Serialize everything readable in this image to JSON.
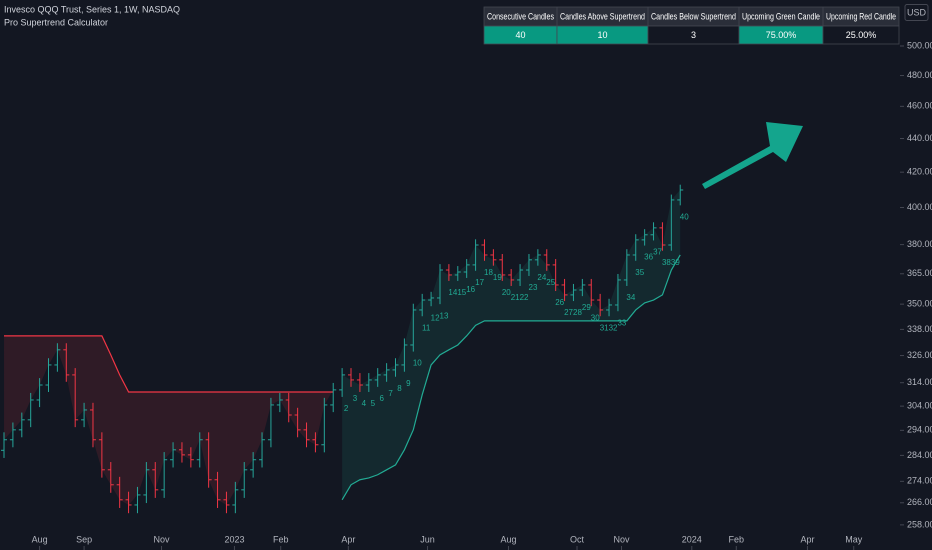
{
  "header": {
    "symbol": "Invesco QQQ Trust, Series 1, 1W, NASDAQ",
    "indicator": "Pro Supertrend Calculator",
    "currency": "USD"
  },
  "table": {
    "headers": [
      "Consecutive Candles",
      "Candles Above Supertrend",
      "Candles Below Supertrend",
      "Upcoming Green Candle",
      "Upcoming Red Candle"
    ],
    "values": [
      "40",
      "10",
      "3",
      "75.00%",
      "25.00%"
    ]
  },
  "chart_data": {
    "type": "ohlc",
    "log_scale": true,
    "up_color": "#26a69a",
    "down_color": "#f23645",
    "open": [
      286.0,
      290.2,
      294.2,
      298.3,
      306.6,
      313.0,
      321.8,
      328.6,
      317.4,
      298.3,
      302.4,
      290.2,
      278.4,
      272.7,
      267.1,
      265.2,
      268.9,
      278.4,
      270.8,
      282.3,
      286.2,
      284.2,
      282.3,
      290.2,
      274.6,
      267.1,
      265.2,
      270.8,
      278.4,
      282.3,
      290.2,
      304.5,
      306.6,
      300.3,
      294.2,
      290.2,
      288.2,
      304.5,
      310.9,
      317.4,
      315.2,
      313.0,
      315.2,
      317.4,
      319.6,
      321.8,
      330.8,
      347.2,
      352.0,
      353.0,
      366.9,
      364.4,
      365.9,
      369.5,
      379.8,
      374.6,
      372.1,
      364.4,
      361.9,
      366.9,
      372.1,
      374.6,
      369.5,
      359.4,
      354.5,
      356.9,
      359.4,
      352.0,
      347.2,
      349.6,
      361.9,
      374.6,
      382.5,
      385.2,
      388.9,
      379.8,
      404.2
    ],
    "high": [
      293.2,
      297.2,
      301.3,
      309.6,
      316.0,
      324.8,
      331.6,
      331.6,
      320.4,
      305.4,
      305.4,
      293.2,
      281.4,
      275.7,
      270.1,
      271.9,
      281.4,
      281.4,
      285.3,
      289.2,
      289.2,
      287.2,
      293.2,
      293.2,
      277.6,
      270.1,
      273.8,
      281.4,
      285.3,
      293.2,
      307.5,
      309.6,
      309.6,
      303.3,
      297.2,
      293.2,
      307.5,
      313.9,
      320.4,
      320.4,
      318.2,
      318.2,
      320.4,
      322.6,
      324.8,
      333.8,
      350.2,
      355.0,
      356.0,
      369.9,
      369.9,
      368.9,
      372.5,
      382.8,
      382.8,
      377.6,
      375.1,
      367.4,
      369.9,
      375.1,
      377.6,
      377.6,
      372.5,
      362.4,
      359.9,
      362.4,
      362.4,
      355.0,
      352.6,
      364.9,
      377.6,
      385.5,
      388.2,
      391.9,
      391.9,
      407.2,
      412.8
    ],
    "low": [
      283.0,
      287.2,
      291.2,
      295.3,
      303.6,
      310.0,
      318.8,
      314.4,
      295.3,
      295.3,
      287.2,
      275.4,
      269.7,
      264.1,
      262.2,
      262.2,
      265.9,
      267.8,
      267.8,
      279.3,
      281.2,
      279.3,
      279.3,
      271.6,
      264.1,
      262.2,
      262.2,
      267.8,
      275.4,
      279.3,
      287.2,
      301.5,
      297.3,
      291.2,
      287.2,
      285.2,
      285.2,
      301.5,
      307.9,
      312.2,
      310.0,
      310.0,
      312.2,
      314.4,
      316.6,
      318.8,
      327.8,
      344.2,
      349.0,
      350.0,
      361.4,
      361.4,
      362.9,
      366.5,
      371.6,
      369.1,
      361.4,
      358.9,
      358.9,
      363.9,
      369.1,
      366.5,
      356.4,
      351.5,
      351.5,
      353.9,
      349.0,
      344.2,
      344.2,
      346.6,
      358.9,
      371.6,
      379.5,
      382.2,
      376.8,
      376.8,
      401.2
    ],
    "close": [
      290.2,
      294.2,
      298.3,
      306.6,
      313.0,
      321.8,
      328.6,
      317.4,
      298.3,
      302.4,
      290.2,
      278.4,
      272.7,
      267.1,
      265.2,
      268.9,
      278.4,
      270.8,
      282.3,
      286.2,
      284.2,
      282.3,
      290.2,
      274.6,
      267.1,
      265.2,
      270.8,
      278.4,
      282.3,
      290.2,
      304.5,
      306.6,
      300.3,
      294.2,
      290.2,
      288.2,
      304.5,
      310.9,
      317.4,
      315.2,
      313.0,
      315.2,
      317.4,
      319.6,
      321.8,
      330.8,
      347.2,
      352.0,
      353.0,
      366.9,
      364.4,
      365.9,
      369.5,
      379.8,
      374.6,
      372.1,
      364.4,
      361.9,
      366.9,
      372.1,
      374.6,
      369.5,
      359.4,
      354.5,
      356.9,
      359.4,
      352.0,
      347.2,
      349.6,
      361.9,
      374.6,
      382.5,
      385.2,
      388.9,
      379.8,
      404.2,
      409.8
    ],
    "supertrend": [
      {
        "color": "#f23645",
        "fill": "rgba(242,54,69,0.13)",
        "values": [
          335,
          335,
          335,
          335,
          335,
          335,
          335,
          335,
          335,
          335,
          335,
          335,
          326.3,
          317.4,
          310,
          310,
          310,
          310,
          310,
          310,
          310,
          310,
          310,
          310,
          310,
          310,
          310,
          310,
          310,
          310,
          310,
          310,
          310,
          310,
          310,
          310,
          310,
          310,
          null,
          null,
          null,
          null,
          null,
          null,
          null,
          null,
          null,
          null,
          null,
          null,
          null,
          null,
          null,
          null,
          null,
          null,
          null,
          null,
          null,
          null,
          null,
          null,
          null,
          null,
          null,
          null,
          null,
          null,
          null,
          null,
          null,
          null,
          null,
          null,
          null,
          null,
          null
        ]
      },
      {
        "color": "#22ab94",
        "fill": "rgba(34,171,148,0.12)",
        "values": [
          null,
          null,
          null,
          null,
          null,
          null,
          null,
          null,
          null,
          null,
          null,
          null,
          null,
          null,
          null,
          null,
          null,
          null,
          null,
          null,
          null,
          null,
          null,
          null,
          null,
          null,
          null,
          null,
          null,
          null,
          null,
          null,
          null,
          null,
          null,
          null,
          null,
          null,
          267.1,
          272.7,
          274.6,
          275.3,
          276.5,
          278.4,
          280.3,
          286.2,
          294.2,
          308.8,
          321.8,
          326.3,
          328.6,
          330.8,
          335.0,
          339.9,
          342,
          342,
          342,
          342,
          342,
          342,
          342,
          342,
          342,
          342,
          342,
          342,
          342,
          342,
          342,
          342,
          342,
          347.2,
          350.6,
          352.0,
          354.5,
          366.9,
          374.6
        ]
      }
    ],
    "counts": [
      null,
      null,
      null,
      null,
      null,
      null,
      null,
      null,
      null,
      null,
      null,
      null,
      null,
      null,
      null,
      null,
      null,
      null,
      null,
      null,
      null,
      null,
      null,
      null,
      null,
      null,
      null,
      null,
      null,
      null,
      null,
      null,
      null,
      null,
      null,
      null,
      null,
      null,
      2,
      3,
      4,
      5,
      6,
      7,
      8,
      9,
      10,
      11,
      12,
      13,
      14,
      15,
      16,
      17,
      18,
      19,
      20,
      21,
      22,
      23,
      24,
      25,
      26,
      27,
      28,
      29,
      30,
      31,
      32,
      33,
      34,
      35,
      36,
      37,
      38,
      39,
      40
    ],
    "count_color": "#22ab94",
    "xlim": [
      -0.45,
      100.7
    ],
    "xticks": [
      {
        "value": 4,
        "label": "Aug"
      },
      {
        "value": 9,
        "label": "Sep"
      },
      {
        "value": 17.7,
        "label": "Nov"
      },
      {
        "value": 25.9,
        "label": "2023"
      },
      {
        "value": 31.1,
        "label": "Feb"
      },
      {
        "value": 38.7,
        "label": "Apr"
      },
      {
        "value": 47.6,
        "label": "Jun"
      },
      {
        "value": 56.7,
        "label": "Aug"
      },
      {
        "value": 64.4,
        "label": "Oct"
      },
      {
        "value": 69.4,
        "label": "Nov"
      },
      {
        "value": 77.3,
        "label": "2024"
      },
      {
        "value": 82.3,
        "label": "Feb"
      },
      {
        "value": 90.3,
        "label": "Apr"
      },
      {
        "value": 95.5,
        "label": "May"
      }
    ],
    "ylim": [
      249.2,
      532.8
    ],
    "yticks": [
      {
        "value": 500,
        "label": "500.00"
      },
      {
        "value": 480,
        "label": "480.00"
      },
      {
        "value": 460,
        "label": "460.00"
      },
      {
        "value": 440,
        "label": "440.00"
      },
      {
        "value": 420,
        "label": "420.00"
      },
      {
        "value": 400,
        "label": "400.00"
      },
      {
        "value": 380,
        "label": "380.00"
      },
      {
        "value": 365,
        "label": "365.00"
      },
      {
        "value": 350,
        "label": "350.00"
      },
      {
        "value": 338,
        "label": "338.00"
      },
      {
        "value": 326,
        "label": "326.00"
      },
      {
        "value": 314,
        "label": "314.00"
      },
      {
        "value": 304,
        "label": "304.00"
      },
      {
        "value": 294,
        "label": "294.00"
      },
      {
        "value": 284,
        "label": "284.00"
      },
      {
        "value": 274,
        "label": "274.00"
      },
      {
        "value": 266,
        "label": "266.00"
      },
      {
        "value": 258,
        "label": "258.00"
      }
    ]
  }
}
